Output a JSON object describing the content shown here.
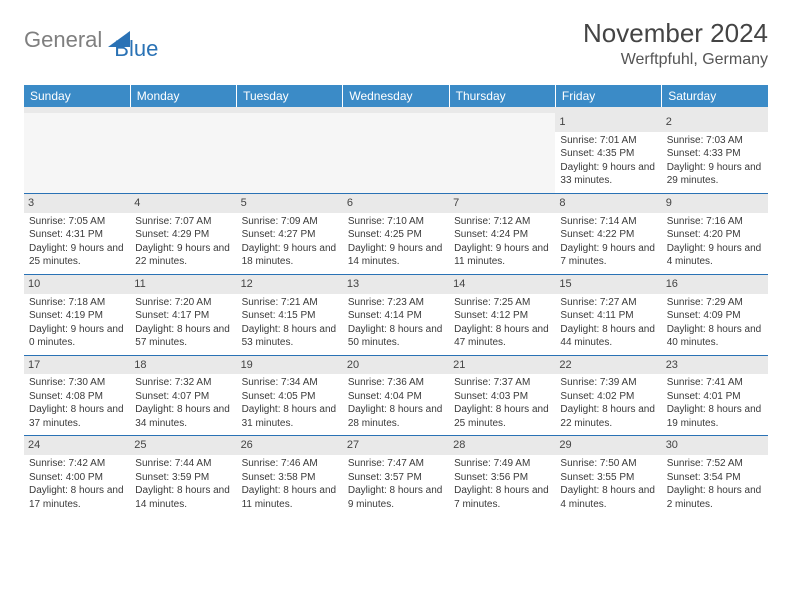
{
  "logo": {
    "gray": "General",
    "blue": "Blue"
  },
  "colors": {
    "header_bg": "#3b8bc7",
    "header_text": "#ffffff",
    "daynum_bg": "#e9e9e9",
    "border": "#2a72b5",
    "logo_gray": "#7f7f7f",
    "logo_blue": "#2a72b5"
  },
  "title": "November 2024",
  "location": "Werftpfuhl, Germany",
  "weekdays": [
    "Sunday",
    "Monday",
    "Tuesday",
    "Wednesday",
    "Thursday",
    "Friday",
    "Saturday"
  ],
  "days": [
    {
      "n": 1,
      "sunrise": "7:01 AM",
      "sunset": "4:35 PM",
      "daylight": "9 hours and 33 minutes."
    },
    {
      "n": 2,
      "sunrise": "7:03 AM",
      "sunset": "4:33 PM",
      "daylight": "9 hours and 29 minutes."
    },
    {
      "n": 3,
      "sunrise": "7:05 AM",
      "sunset": "4:31 PM",
      "daylight": "9 hours and 25 minutes."
    },
    {
      "n": 4,
      "sunrise": "7:07 AM",
      "sunset": "4:29 PM",
      "daylight": "9 hours and 22 minutes."
    },
    {
      "n": 5,
      "sunrise": "7:09 AM",
      "sunset": "4:27 PM",
      "daylight": "9 hours and 18 minutes."
    },
    {
      "n": 6,
      "sunrise": "7:10 AM",
      "sunset": "4:25 PM",
      "daylight": "9 hours and 14 minutes."
    },
    {
      "n": 7,
      "sunrise": "7:12 AM",
      "sunset": "4:24 PM",
      "daylight": "9 hours and 11 minutes."
    },
    {
      "n": 8,
      "sunrise": "7:14 AM",
      "sunset": "4:22 PM",
      "daylight": "9 hours and 7 minutes."
    },
    {
      "n": 9,
      "sunrise": "7:16 AM",
      "sunset": "4:20 PM",
      "daylight": "9 hours and 4 minutes."
    },
    {
      "n": 10,
      "sunrise": "7:18 AM",
      "sunset": "4:19 PM",
      "daylight": "9 hours and 0 minutes."
    },
    {
      "n": 11,
      "sunrise": "7:20 AM",
      "sunset": "4:17 PM",
      "daylight": "8 hours and 57 minutes."
    },
    {
      "n": 12,
      "sunrise": "7:21 AM",
      "sunset": "4:15 PM",
      "daylight": "8 hours and 53 minutes."
    },
    {
      "n": 13,
      "sunrise": "7:23 AM",
      "sunset": "4:14 PM",
      "daylight": "8 hours and 50 minutes."
    },
    {
      "n": 14,
      "sunrise": "7:25 AM",
      "sunset": "4:12 PM",
      "daylight": "8 hours and 47 minutes."
    },
    {
      "n": 15,
      "sunrise": "7:27 AM",
      "sunset": "4:11 PM",
      "daylight": "8 hours and 44 minutes."
    },
    {
      "n": 16,
      "sunrise": "7:29 AM",
      "sunset": "4:09 PM",
      "daylight": "8 hours and 40 minutes."
    },
    {
      "n": 17,
      "sunrise": "7:30 AM",
      "sunset": "4:08 PM",
      "daylight": "8 hours and 37 minutes."
    },
    {
      "n": 18,
      "sunrise": "7:32 AM",
      "sunset": "4:07 PM",
      "daylight": "8 hours and 34 minutes."
    },
    {
      "n": 19,
      "sunrise": "7:34 AM",
      "sunset": "4:05 PM",
      "daylight": "8 hours and 31 minutes."
    },
    {
      "n": 20,
      "sunrise": "7:36 AM",
      "sunset": "4:04 PM",
      "daylight": "8 hours and 28 minutes."
    },
    {
      "n": 21,
      "sunrise": "7:37 AM",
      "sunset": "4:03 PM",
      "daylight": "8 hours and 25 minutes."
    },
    {
      "n": 22,
      "sunrise": "7:39 AM",
      "sunset": "4:02 PM",
      "daylight": "8 hours and 22 minutes."
    },
    {
      "n": 23,
      "sunrise": "7:41 AM",
      "sunset": "4:01 PM",
      "daylight": "8 hours and 19 minutes."
    },
    {
      "n": 24,
      "sunrise": "7:42 AM",
      "sunset": "4:00 PM",
      "daylight": "8 hours and 17 minutes."
    },
    {
      "n": 25,
      "sunrise": "7:44 AM",
      "sunset": "3:59 PM",
      "daylight": "8 hours and 14 minutes."
    },
    {
      "n": 26,
      "sunrise": "7:46 AM",
      "sunset": "3:58 PM",
      "daylight": "8 hours and 11 minutes."
    },
    {
      "n": 27,
      "sunrise": "7:47 AM",
      "sunset": "3:57 PM",
      "daylight": "8 hours and 9 minutes."
    },
    {
      "n": 28,
      "sunrise": "7:49 AM",
      "sunset": "3:56 PM",
      "daylight": "8 hours and 7 minutes."
    },
    {
      "n": 29,
      "sunrise": "7:50 AM",
      "sunset": "3:55 PM",
      "daylight": "8 hours and 4 minutes."
    },
    {
      "n": 30,
      "sunrise": "7:52 AM",
      "sunset": "3:54 PM",
      "daylight": "8 hours and 2 minutes."
    }
  ],
  "labels": {
    "sunrise": "Sunrise:",
    "sunset": "Sunset:",
    "daylight": "Daylight:"
  },
  "layout": {
    "first_day_column": 5,
    "columns": 7,
    "rows": 5
  }
}
